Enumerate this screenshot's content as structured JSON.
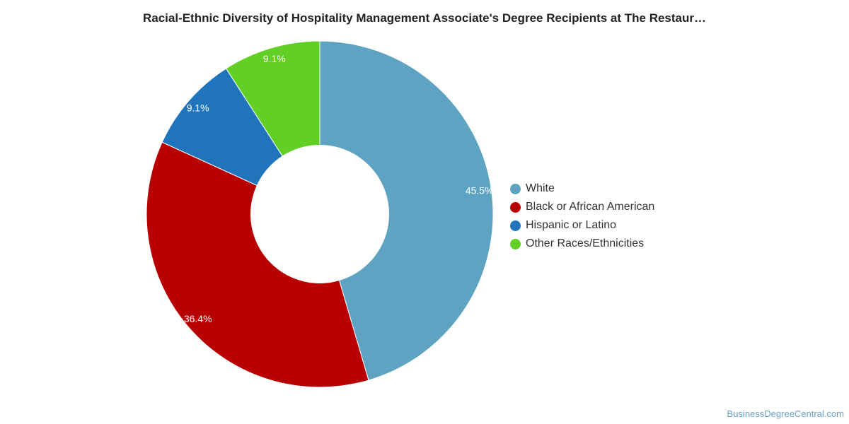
{
  "chart_data": {
    "type": "pie",
    "title": "Racial-Ethnic Diversity of Hospitality Management Associate's Degree Recipients at The Restaur…",
    "categories": [
      "White",
      "Black or African American",
      "Hispanic or Latino",
      "Other Races/Ethnicities"
    ],
    "values": [
      45.5,
      36.4,
      9.1,
      9.1
    ],
    "value_labels": [
      "45.5%",
      "36.4%",
      "9.1%",
      "9.1%"
    ],
    "colors": [
      "#5ea3c1",
      "#b90000",
      "#1f74bc",
      "#62cf25"
    ],
    "legend_position": "right",
    "donut": true
  },
  "source": {
    "credit": "BusinessDegreeCentral.com"
  }
}
